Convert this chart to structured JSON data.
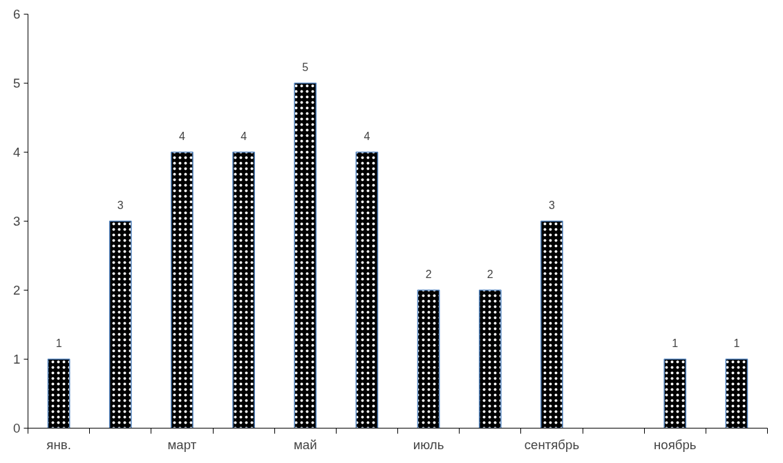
{
  "chart_data": {
    "type": "bar",
    "categories": [
      "янв.",
      null,
      "март",
      null,
      "май",
      null,
      "июль",
      null,
      "сентябрь",
      null,
      "ноябрь",
      null
    ],
    "values": [
      1,
      3,
      4,
      4,
      5,
      4,
      2,
      2,
      3,
      null,
      1,
      1
    ],
    "color": "#000000",
    "ylim": [
      0,
      6
    ],
    "yticks": [
      0,
      1,
      2,
      3,
      4,
      5,
      6
    ],
    "data_labels": true,
    "grid": false
  }
}
